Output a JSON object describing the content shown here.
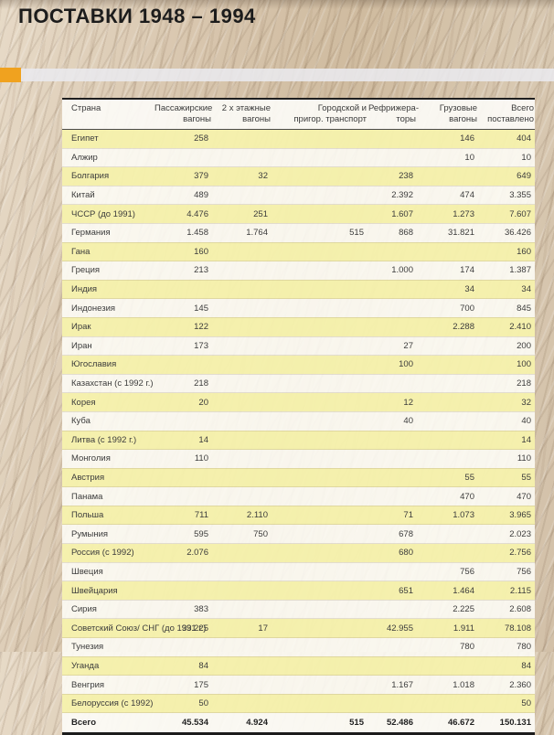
{
  "title": "ПОСТАВКИ 1948 – 1994",
  "colors": {
    "accent_orange": "#f0a21f",
    "accent_band_gray": "#e9e9ee",
    "row_yellow": "#f6f1ad",
    "row_white": "#fdfcf5",
    "background_sepia": "#d8c6ae",
    "border_dark": "#1f1f1f"
  },
  "table": {
    "headers": [
      {
        "line1": "Страна",
        "line2": ""
      },
      {
        "line1": "Пассажирские",
        "line2": "вагоны"
      },
      {
        "line1": "2 х этажные",
        "line2": "вагоны"
      },
      {
        "line1": "Городской и",
        "line2": "пригор. транспорт"
      },
      {
        "line1": "Рефрижера-",
        "line2": "торы"
      },
      {
        "line1": "Грузовые",
        "line2": "вагоны"
      },
      {
        "line1": "Всего",
        "line2": "поставлено"
      }
    ],
    "rows": [
      {
        "country": "Египет",
        "values": [
          "258",
          "",
          "",
          "",
          "146",
          "404"
        ]
      },
      {
        "country": "Алжир",
        "values": [
          "",
          "",
          "",
          "",
          "10",
          "10"
        ]
      },
      {
        "country": "Болгария",
        "values": [
          "379",
          "32",
          "",
          "238",
          "",
          "649"
        ]
      },
      {
        "country": "Китай",
        "values": [
          "489",
          "",
          "",
          "2.392",
          "474",
          "3.355"
        ]
      },
      {
        "country": "ЧССР (до 1991)",
        "values": [
          "4.476",
          "251",
          "",
          "1.607",
          "1.273",
          "7.607"
        ]
      },
      {
        "country": "Германия",
        "values": [
          "1.458",
          "1.764",
          "515",
          "868",
          "31.821",
          "36.426"
        ]
      },
      {
        "country": "Гана",
        "values": [
          "160",
          "",
          "",
          "",
          "",
          "160"
        ]
      },
      {
        "country": "Греция",
        "values": [
          "213",
          "",
          "",
          "1.000",
          "174",
          "1.387"
        ]
      },
      {
        "country": "Индия",
        "values": [
          "",
          "",
          "",
          "",
          "34",
          "34"
        ]
      },
      {
        "country": "Индонезия",
        "values": [
          "145",
          "",
          "",
          "",
          "700",
          "845"
        ]
      },
      {
        "country": "Ирак",
        "values": [
          "122",
          "",
          "",
          "",
          "2.288",
          "2.410"
        ]
      },
      {
        "country": "Иран",
        "values": [
          "173",
          "",
          "",
          "27",
          "",
          "200"
        ]
      },
      {
        "country": "Югославия",
        "values": [
          "",
          "",
          "",
          "100",
          "",
          "100"
        ]
      },
      {
        "country": "Казахстан (с 1992 г.)",
        "values": [
          "218",
          "",
          "",
          "",
          "",
          "218"
        ]
      },
      {
        "country": "Корея",
        "values": [
          "20",
          "",
          "",
          "12",
          "",
          "32"
        ]
      },
      {
        "country": "Куба",
        "values": [
          "",
          "",
          "",
          "40",
          "",
          "40"
        ]
      },
      {
        "country": "Литва (с 1992 г.)",
        "values": [
          "14",
          "",
          "",
          "",
          "",
          "14"
        ]
      },
      {
        "country": "Монголия",
        "values": [
          "110",
          "",
          "",
          "",
          "",
          "110"
        ]
      },
      {
        "country": "Австрия",
        "values": [
          "",
          "",
          "",
          "",
          "55",
          "55"
        ]
      },
      {
        "country": "Панама",
        "values": [
          "",
          "",
          "",
          "",
          "470",
          "470"
        ]
      },
      {
        "country": "Польша",
        "values": [
          "711",
          "2.110",
          "",
          "71",
          "1.073",
          "3.965"
        ]
      },
      {
        "country": "Румыния",
        "values": [
          "595",
          "750",
          "",
          "678",
          "",
          "2.023"
        ]
      },
      {
        "country": "Россия (с 1992)",
        "values": [
          "2.076",
          "",
          "",
          "680",
          "",
          "2.756"
        ]
      },
      {
        "country": "Швеция",
        "values": [
          "",
          "",
          "",
          "",
          "756",
          "756"
        ]
      },
      {
        "country": "Швейцария",
        "values": [
          "",
          "",
          "",
          "651",
          "1.464",
          "2.115"
        ]
      },
      {
        "country": "Сирия",
        "values": [
          "383",
          "",
          "",
          "",
          "2.225",
          "2.608"
        ]
      },
      {
        "country": "Советский Союз/ СНГ (до 1991 г.)",
        "values": [
          "33.225",
          "17",
          "",
          "42.955",
          "1.911",
          "78.108"
        ]
      },
      {
        "country": "Тунезия",
        "values": [
          "",
          "",
          "",
          "",
          "780",
          "780"
        ]
      },
      {
        "country": "Уганда",
        "values": [
          "84",
          "",
          "",
          "",
          "",
          "84"
        ]
      },
      {
        "country": "Венгрия",
        "values": [
          "175",
          "",
          "",
          "1.167",
          "1.018",
          "2.360"
        ]
      },
      {
        "country": "Белоруссия (с 1992)",
        "values": [
          "50",
          "",
          "",
          "",
          "",
          "50"
        ]
      }
    ],
    "total": {
      "label": "Всего",
      "values": [
        "45.534",
        "4.924",
        "515",
        "52.486",
        "46.672",
        "150.131"
      ]
    }
  }
}
